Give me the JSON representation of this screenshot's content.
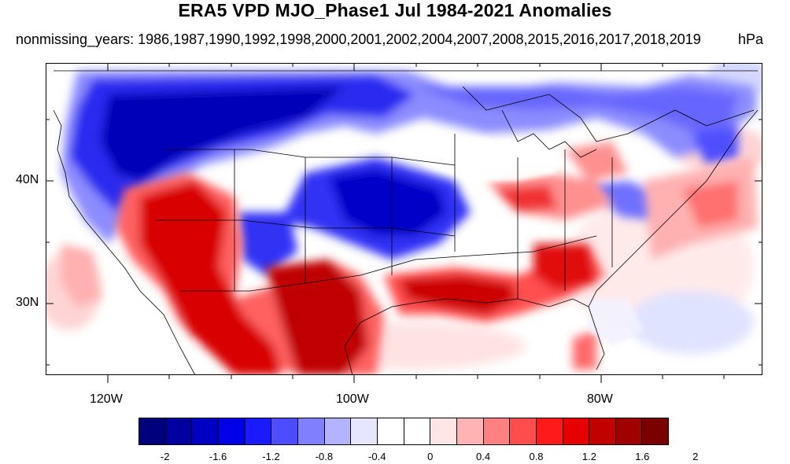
{
  "header": {
    "title": "ERA5 VPD MJO_Phase1 Jul 1984-2021 Anomalies",
    "subtitle": "nonmissing_years: 1986,1987,1990,1992,1998,2000,2001,2002,2004,2007,2008,2015,2016,2017,2018,2019",
    "units": "hPa"
  },
  "axes": {
    "y_labels": [
      "40N",
      "30N"
    ],
    "x_labels": [
      "120W",
      "100W",
      "80W"
    ]
  },
  "colorbar": {
    "labels": [
      "-2",
      "-1.6",
      "-1.2",
      "-0.8",
      "-0.4",
      "0",
      "0.4",
      "0.8",
      "1.2",
      "1.6",
      "2"
    ],
    "colors": [
      "#00007d",
      "#0000a0",
      "#0000c3",
      "#0000e6",
      "#1a1aff",
      "#4d4dff",
      "#8080ff",
      "#b3b3ff",
      "#e6e6ff",
      "#ffffff",
      "#ffffff",
      "#ffe6e6",
      "#ffb3b3",
      "#ff8080",
      "#ff4d4d",
      "#ff1a1a",
      "#e60000",
      "#c30000",
      "#a00000",
      "#7d0000"
    ]
  }
}
